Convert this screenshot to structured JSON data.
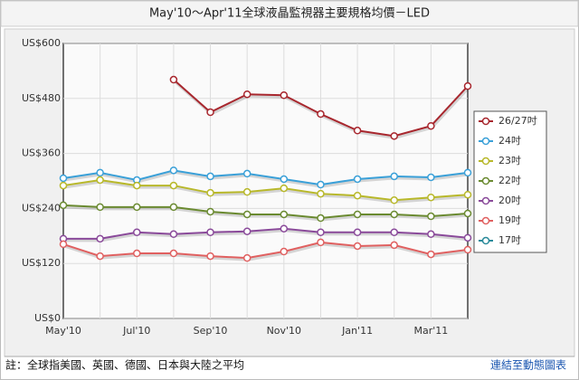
{
  "chart_data": {
    "type": "line",
    "title": "May'10～Apr'11全球液晶監視器主要規格均價－LED",
    "categories": [
      "May'10",
      null,
      "Jul'10",
      null,
      "Sep'10",
      null,
      "Nov'10",
      null,
      "Jan'11",
      null,
      "Mar'11",
      null
    ],
    "ylim": [
      0,
      600
    ],
    "yticks": [
      {
        "value": 0,
        "label": "US$0"
      },
      {
        "value": 120,
        "label": "US$120"
      },
      {
        "value": 240,
        "label": "US$240"
      },
      {
        "value": 360,
        "label": "US$360"
      },
      {
        "value": 480,
        "label": "US$480"
      },
      {
        "value": 600,
        "label": "US$600"
      }
    ],
    "grid": true,
    "legend": "right",
    "series": [
      {
        "name": "26/27吋",
        "color": "#a8272e",
        "values": [
          null,
          null,
          null,
          521,
          450,
          489,
          487,
          446,
          410,
          398,
          420,
          507
        ]
      },
      {
        "name": "24吋",
        "color": "#3aa0d8",
        "values": [
          306,
          318,
          302,
          323,
          310,
          316,
          304,
          292,
          304,
          310,
          308,
          318
        ]
      },
      {
        "name": "23吋",
        "color": "#b8b82a",
        "values": [
          290,
          302,
          290,
          290,
          274,
          276,
          284,
          272,
          268,
          258,
          264,
          270
        ]
      },
      {
        "name": "22吋",
        "color": "#6a8a30",
        "values": [
          247,
          243,
          243,
          243,
          233,
          227,
          227,
          219,
          227,
          227,
          223,
          229
        ]
      },
      {
        "name": "20吋",
        "color": "#8a4a9a",
        "values": [
          174,
          174,
          188,
          184,
          188,
          190,
          196,
          188,
          188,
          188,
          184,
          176
        ]
      },
      {
        "name": "19吋",
        "color": "#e06060",
        "values": [
          162,
          136,
          142,
          142,
          136,
          132,
          146,
          166,
          158,
          160,
          140,
          150
        ]
      },
      {
        "name": "17吋",
        "color": "#2a8a9a",
        "values": [
          null,
          null,
          null,
          null,
          null,
          null,
          null,
          null,
          null,
          null,
          null,
          null
        ]
      }
    ]
  },
  "footer": {
    "note": "註：全球指美國、英國、德國、日本與大陸之平均",
    "link": "連結至動態圖表"
  }
}
